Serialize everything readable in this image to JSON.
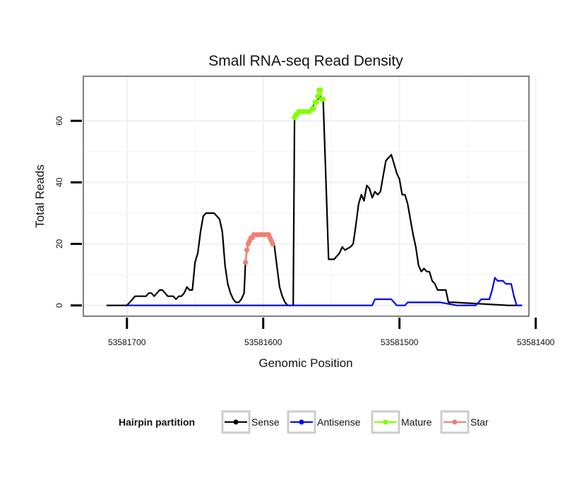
{
  "chart_data": {
    "type": "line",
    "title": "Small RNA-seq Read Density",
    "xlabel": "Genomic Position",
    "ylabel": "Total Reads",
    "x_reversed": true,
    "xlim": [
      53581405,
      53581732
    ],
    "ylim": [
      -3.5,
      74.5
    ],
    "x_ticks": [
      53581700,
      53581600,
      53581500,
      53581400
    ],
    "x_tick_labels": [
      "53581700",
      "53581600",
      "53581500",
      "53581400"
    ],
    "y_ticks": [
      0,
      20,
      40,
      60
    ],
    "y_tick_labels": [
      "0",
      "20",
      "40",
      "60"
    ],
    "grid": true,
    "legend": {
      "title": "Hairpin partition",
      "position": "bottom",
      "entries": [
        "Sense",
        "Antisense",
        "Mature",
        "Star"
      ]
    },
    "series": [
      {
        "name": "Sense",
        "color": "#000000",
        "marker": false,
        "points": [
          [
            53581715,
            0
          ],
          [
            53581700,
            0
          ],
          [
            53581698,
            1
          ],
          [
            53581696,
            2
          ],
          [
            53581694,
            3
          ],
          [
            53581690,
            3
          ],
          [
            53581686,
            3
          ],
          [
            53581684,
            4
          ],
          [
            53581682,
            4
          ],
          [
            53581680,
            3
          ],
          [
            53581678,
            4
          ],
          [
            53581676,
            5
          ],
          [
            53581674,
            5
          ],
          [
            53581672,
            4
          ],
          [
            53581670,
            3
          ],
          [
            53581666,
            3
          ],
          [
            53581664,
            2
          ],
          [
            53581662,
            3
          ],
          [
            53581660,
            3
          ],
          [
            53581658,
            4
          ],
          [
            53581656,
            6
          ],
          [
            53581654,
            5
          ],
          [
            53581652,
            5
          ],
          [
            53581650,
            14
          ],
          [
            53581648,
            17
          ],
          [
            53581646,
            24
          ],
          [
            53581644,
            29
          ],
          [
            53581642,
            30
          ],
          [
            53581636,
            30
          ],
          [
            53581634,
            29
          ],
          [
            53581632,
            28
          ],
          [
            53581630,
            24
          ],
          [
            53581628,
            13
          ],
          [
            53581626,
            7
          ],
          [
            53581624,
            4
          ],
          [
            53581622,
            2
          ],
          [
            53581620,
            1
          ],
          [
            53581618,
            1
          ],
          [
            53581616,
            2
          ],
          [
            53581614,
            4
          ],
          [
            53581613,
            14
          ],
          [
            53581612,
            18
          ],
          [
            53581611,
            20
          ],
          [
            53581610,
            21
          ],
          [
            53581609,
            22
          ],
          [
            53581608,
            22
          ],
          [
            53581607,
            23
          ],
          [
            53581596,
            23
          ],
          [
            53581595,
            22
          ],
          [
            53581594,
            21
          ],
          [
            53581593,
            20
          ],
          [
            53581592,
            20
          ],
          [
            53581590,
            13
          ],
          [
            53581588,
            6
          ],
          [
            53581586,
            3
          ],
          [
            53581584,
            1
          ],
          [
            53581582,
            0
          ],
          [
            53581578,
            0
          ],
          [
            53581577,
            61
          ],
          [
            53581576,
            62
          ],
          [
            53581574,
            63
          ],
          [
            53581568,
            63
          ],
          [
            53581566,
            63
          ],
          [
            53581564,
            64
          ],
          [
            53581562,
            66
          ],
          [
            53581560,
            67
          ],
          [
            53581558,
            68
          ],
          [
            53581557,
            67
          ],
          [
            53581556,
            67
          ],
          [
            53581554,
            41
          ],
          [
            53581552,
            15
          ],
          [
            53581548,
            15
          ],
          [
            53581546,
            16
          ],
          [
            53581544,
            17
          ],
          [
            53581542,
            19
          ],
          [
            53581540,
            18
          ],
          [
            53581536,
            19
          ],
          [
            53581534,
            20
          ],
          [
            53581532,
            26
          ],
          [
            53581530,
            33
          ],
          [
            53581528,
            36
          ],
          [
            53581526,
            34
          ],
          [
            53581524,
            39
          ],
          [
            53581522,
            38
          ],
          [
            53581520,
            35
          ],
          [
            53581518,
            37
          ],
          [
            53581516,
            36
          ],
          [
            53581514,
            37
          ],
          [
            53581512,
            42
          ],
          [
            53581510,
            47
          ],
          [
            53581508,
            48
          ],
          [
            53581506,
            49
          ],
          [
            53581504,
            46
          ],
          [
            53581502,
            43
          ],
          [
            53581500,
            41
          ],
          [
            53581498,
            36
          ],
          [
            53581496,
            36
          ],
          [
            53581494,
            33
          ],
          [
            53581492,
            28
          ],
          [
            53581490,
            23
          ],
          [
            53581488,
            19
          ],
          [
            53581486,
            13
          ],
          [
            53581484,
            11
          ],
          [
            53581482,
            12
          ],
          [
            53581480,
            11
          ],
          [
            53581478,
            11
          ],
          [
            53581476,
            8
          ],
          [
            53581474,
            7
          ],
          [
            53581472,
            5
          ],
          [
            53581470,
            5
          ],
          [
            53581466,
            5
          ],
          [
            53581464,
            1
          ],
          [
            53581460,
            1
          ],
          [
            53581420,
            0
          ],
          [
            53581410,
            0
          ]
        ]
      },
      {
        "name": "Antisense",
        "color": "#0000ff",
        "marker": false,
        "points": [
          [
            53581700,
            0
          ],
          [
            53581520,
            0
          ],
          [
            53581518,
            2
          ],
          [
            53581506,
            2
          ],
          [
            53581504,
            1
          ],
          [
            53581502,
            0
          ],
          [
            53581496,
            0
          ],
          [
            53581494,
            1
          ],
          [
            53581480,
            1
          ],
          [
            53581476,
            1
          ],
          [
            53581470,
            1
          ],
          [
            53581458,
            0
          ],
          [
            53581444,
            0
          ],
          [
            53581442,
            1
          ],
          [
            53581440,
            2
          ],
          [
            53581434,
            2
          ],
          [
            53581432,
            5
          ],
          [
            53581430,
            9
          ],
          [
            53581428,
            8
          ],
          [
            53581424,
            8
          ],
          [
            53581422,
            7
          ],
          [
            53581418,
            7
          ],
          [
            53581416,
            3
          ],
          [
            53581414,
            0
          ],
          [
            53581410,
            0
          ]
        ]
      },
      {
        "name": "Mature",
        "color": "#7fff00",
        "marker": true,
        "points": [
          [
            53581577,
            61
          ],
          [
            53581576,
            62
          ],
          [
            53581575,
            62
          ],
          [
            53581574,
            63
          ],
          [
            53581572,
            63
          ],
          [
            53581570,
            63
          ],
          [
            53581568,
            63
          ],
          [
            53581566,
            63
          ],
          [
            53581564,
            64
          ],
          [
            53581563,
            64
          ],
          [
            53581562,
            66
          ],
          [
            53581561,
            66
          ],
          [
            53581560,
            68
          ],
          [
            53581559,
            70
          ],
          [
            53581558,
            70
          ],
          [
            53581557,
            67
          ],
          [
            53581556,
            67
          ]
        ]
      },
      {
        "name": "Star",
        "color": "#f08070",
        "marker": true,
        "points": [
          [
            53581613,
            14
          ],
          [
            53581612,
            18
          ],
          [
            53581611,
            20
          ],
          [
            53581610,
            21
          ],
          [
            53581609,
            22
          ],
          [
            53581608,
            22
          ],
          [
            53581607,
            23
          ],
          [
            53581605,
            23
          ],
          [
            53581603,
            23
          ],
          [
            53581601,
            23
          ],
          [
            53581599,
            23
          ],
          [
            53581597,
            23
          ],
          [
            53581596,
            23
          ],
          [
            53581595,
            22
          ],
          [
            53581594,
            21
          ],
          [
            53581593,
            20
          ]
        ]
      }
    ]
  }
}
